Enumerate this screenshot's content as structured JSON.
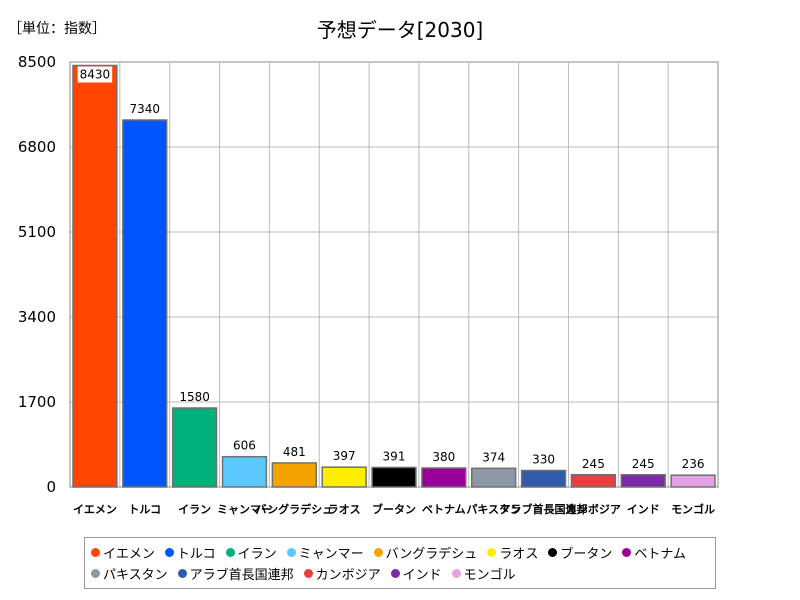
{
  "unit_label": "［単位：指数］",
  "chart_data": {
    "type": "bar",
    "title": "予想データ[2030]",
    "xlabel": "",
    "ylabel": "",
    "ylim": [
      0,
      8500
    ],
    "yticks": [
      "0",
      "1700",
      "3400",
      "5100",
      "6800",
      "8500"
    ],
    "grid": true,
    "legend_position": "bottom",
    "categories": [
      "イエメン",
      "トルコ",
      "イラン",
      "ミャンマー",
      "バングラデシュ",
      "ラオス",
      "ブータン",
      "ベトナム",
      "パキスタン",
      "アラブ首長国連邦",
      "カンボジア",
      "インド",
      "モンゴル"
    ],
    "values": [
      8430,
      7340,
      1580,
      606,
      481,
      397,
      391,
      380,
      374,
      330,
      245,
      245,
      236
    ],
    "colors": [
      "#ff4500",
      "#0055ff",
      "#00b07a",
      "#5bc8ff",
      "#f5a300",
      "#ffee00",
      "#000000",
      "#990099",
      "#8c9aa5",
      "#2f5caa",
      "#e84040",
      "#7b2aa5",
      "#e5a0e5"
    ]
  }
}
